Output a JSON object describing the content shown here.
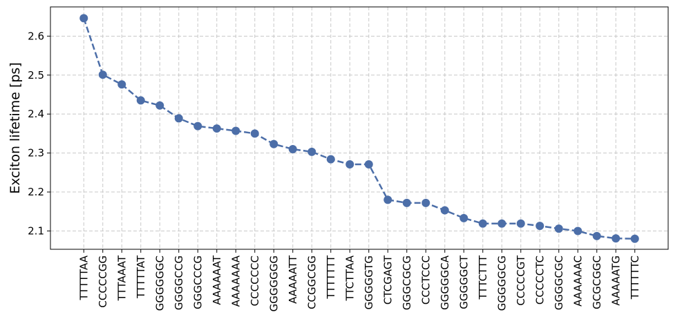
{
  "chart_data": {
    "type": "line",
    "title": "",
    "xlabel": "",
    "ylabel": "Exciton lifetime [ps]",
    "ylim": [
      2.053,
      2.675
    ],
    "yticks": [
      "2.1",
      "2.2",
      "2.3",
      "2.4",
      "2.5",
      "2.6"
    ],
    "grid": true,
    "line_style": "dashed",
    "marker": "circle",
    "color": "#4c6ea8",
    "categories": [
      "TTTTTAA",
      "CCCCCGG",
      "TTTAAAT",
      "TTTTTAT",
      "GGGGGGC",
      "GGGGCCG",
      "GGGCCCG",
      "AAAAAAT",
      "AAAAAAA",
      "CCCCCCC",
      "GGGGGGG",
      "AAAAATT",
      "CCGGCGG",
      "TTTTTTT",
      "TTCTTAA",
      "GGGGGTG",
      "CTCGAGT",
      "GGGCGCG",
      "CCCTCCC",
      "GGGGGCA",
      "GGGGGCT",
      "TTTCTTT",
      "GGGGGCG",
      "CCCCCGT",
      "CCCCCTC",
      "GGGGCGC",
      "AAAAAAC",
      "GCGCGGC",
      "AAAAATG",
      "TTTTTTC"
    ],
    "series": [
      {
        "values": [
          2.646,
          2.501,
          2.476,
          2.435,
          2.422,
          2.389,
          2.369,
          2.363,
          2.357,
          2.35,
          2.323,
          2.31,
          2.303,
          2.284,
          2.271,
          2.271,
          2.18,
          2.172,
          2.172,
          2.153,
          2.133,
          2.119,
          2.119,
          2.119,
          2.113,
          2.106,
          2.1,
          2.087,
          2.081,
          2.08
        ]
      }
    ]
  }
}
